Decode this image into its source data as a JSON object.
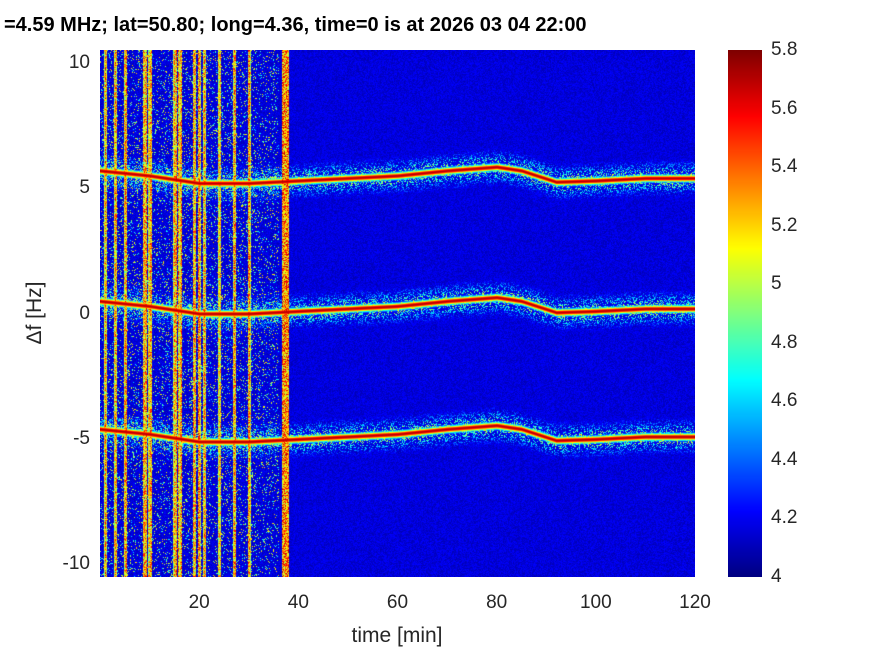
{
  "chart_data": {
    "type": "heatmap",
    "title": "=4.59 MHz;  lat=50.80; long=4.36, time=0 is at 2026 03 04 22:00",
    "xlabel": "time [min]",
    "ylabel": "Δf [Hz]",
    "xlim": [
      0,
      120
    ],
    "ylim": [
      -10.5,
      10.5
    ],
    "xticks": [
      20,
      40,
      60,
      80,
      100,
      120
    ],
    "yticks": [
      10,
      5,
      0,
      -5,
      -10
    ],
    "colorbar": {
      "clim": [
        4,
        5.8
      ],
      "ticks": [
        5.8,
        5.6,
        5.4,
        5.2,
        5,
        4.8,
        4.6,
        4.4,
        4.2,
        4
      ],
      "colormap": "jet"
    },
    "carriers": [
      {
        "name": "upper",
        "offset_hz": 5.2
      },
      {
        "name": "center",
        "offset_hz": 0
      },
      {
        "name": "lower",
        "offset_hz": -5.1
      }
    ],
    "center_drift": {
      "time_min": [
        0,
        10,
        20,
        30,
        40,
        50,
        60,
        70,
        80,
        85,
        92,
        100,
        110,
        120
      ],
      "freq_hz": [
        0.5,
        0.3,
        0.0,
        0.0,
        0.1,
        0.2,
        0.3,
        0.5,
        0.65,
        0.5,
        0.05,
        0.1,
        0.2,
        0.2
      ]
    },
    "interference_lines_min": [
      1,
      3,
      5,
      9,
      10,
      15,
      16,
      19,
      20,
      21,
      24,
      27,
      30,
      37,
      37.6
    ],
    "background_level": 4.0,
    "peak_level": 5.8
  }
}
